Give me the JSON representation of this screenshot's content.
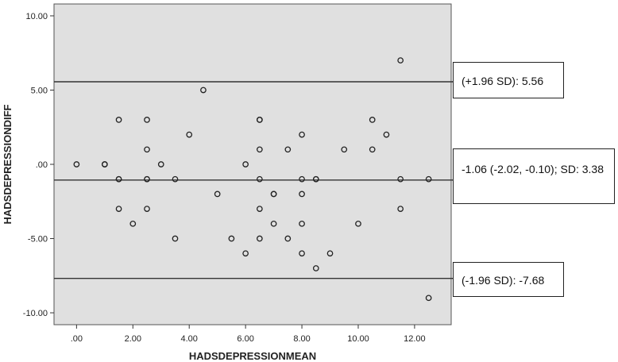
{
  "chart_data": {
    "type": "scatter",
    "title": "",
    "xlabel": "HADSDEPRESSIONMEAN",
    "ylabel": "HADSDEPRESSIONDIFF",
    "xlim": [
      -0.8,
      13.3
    ],
    "ylim": [
      -10.8,
      10.8
    ],
    "x_ticks": [
      0,
      2,
      4,
      6,
      8,
      10,
      12
    ],
    "x_tick_labels": [
      ".00",
      "2.00",
      "4.00",
      "6.00",
      "8.00",
      "10.00",
      "12.00"
    ],
    "y_ticks": [
      10,
      5,
      0,
      -5,
      -10
    ],
    "y_tick_labels": [
      "10.00",
      "5.00",
      ".00",
      "-5.00",
      "-10.00"
    ],
    "grid": false,
    "background_color": "#e0e0e0",
    "points": {
      "x": [
        0,
        1,
        1,
        1.5,
        1.5,
        1.5,
        1.5,
        2,
        2.5,
        2.5,
        2.5,
        2.5,
        2.5,
        3,
        3.5,
        3.5,
        4,
        4.5,
        5,
        5.5,
        6,
        6,
        6.5,
        6.5,
        6.5,
        6.5,
        6.5,
        6.5,
        7,
        7,
        7,
        7.5,
        7.5,
        8,
        8,
        8,
        8,
        8,
        8.5,
        8.5,
        8.5,
        9,
        9.5,
        10,
        10.5,
        10.5,
        11,
        11.5,
        11.5,
        11.5,
        12.5,
        12.5
      ],
      "y": [
        0,
        0,
        0,
        -1,
        -1,
        3,
        -3,
        -4,
        3,
        1,
        -1,
        -1,
        -3,
        0,
        -1,
        -5,
        2,
        5,
        -2,
        -5,
        0,
        -6,
        3,
        3,
        1,
        -1,
        -5,
        -3,
        -2,
        -2,
        -4,
        1,
        -5,
        2,
        -2,
        -4,
        -6,
        -1,
        -1,
        -1,
        -7,
        -6,
        1,
        -4,
        3,
        1,
        2,
        7,
        -1,
        -3,
        -1,
        -9
      ]
    },
    "reference_lines": [
      {
        "y": 5.56,
        "label": "(+1.96 SD): 5.56"
      },
      {
        "y": -1.06,
        "label": "-1.06 (-2.02, -0.10); SD: 3.38"
      },
      {
        "y": -7.68,
        "label": "(-1.96 SD): -7.68"
      }
    ]
  }
}
